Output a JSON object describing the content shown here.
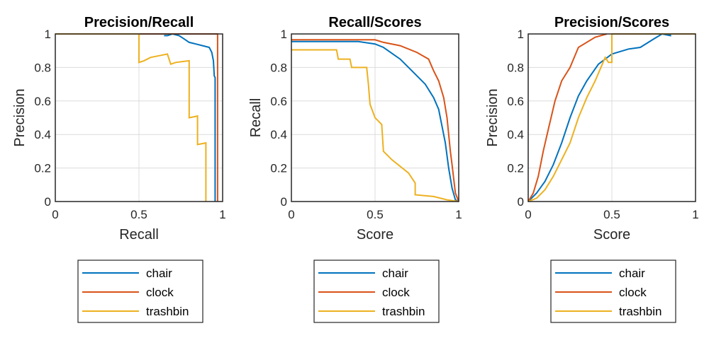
{
  "colors": {
    "chair": "#0072BD",
    "clock": "#D95319",
    "trashbin": "#EDB120"
  },
  "chart_data": [
    {
      "type": "line",
      "title": "Precision/Recall",
      "xlabel": "Recall",
      "ylabel": "Precision",
      "xlim": [
        0,
        1
      ],
      "ylim": [
        0,
        1
      ],
      "xticks": [
        "0",
        "0.5",
        "1"
      ],
      "yticks": [
        "0",
        "0.2",
        "0.4",
        "0.6",
        "0.8",
        "1"
      ],
      "grid": true,
      "legend": "below",
      "series": [
        {
          "name": "chair",
          "points": [
            [
              0.65,
              0.99
            ],
            [
              0.67,
              0.99
            ],
            [
              0.7,
              1
            ],
            [
              0.74,
              0.99
            ],
            [
              0.77,
              0.97
            ],
            [
              0.8,
              0.95
            ],
            [
              0.84,
              0.94
            ],
            [
              0.88,
              0.93
            ],
            [
              0.92,
              0.92
            ],
            [
              0.935,
              0.89
            ],
            [
              0.945,
              0.84
            ],
            [
              0.95,
              0.75
            ],
            [
              0.955,
              0.74
            ],
            [
              0.955,
              0
            ]
          ]
        },
        {
          "name": "clock",
          "points": [
            [
              0,
              1
            ],
            [
              0.97,
              1
            ],
            [
              0.97,
              0
            ]
          ]
        },
        {
          "name": "trashbin",
          "points": [
            [
              0,
              1
            ],
            [
              0.5,
              1
            ],
            [
              0.5,
              0.83
            ],
            [
              0.53,
              0.84
            ],
            [
              0.57,
              0.86
            ],
            [
              0.62,
              0.87
            ],
            [
              0.67,
              0.88
            ],
            [
              0.69,
              0.82
            ],
            [
              0.72,
              0.83
            ],
            [
              0.8,
              0.84
            ],
            [
              0.8,
              0.5
            ],
            [
              0.85,
              0.51
            ],
            [
              0.85,
              0.34
            ],
            [
              0.9,
              0.35
            ],
            [
              0.9,
              0
            ]
          ]
        }
      ]
    },
    {
      "type": "line",
      "title": "Recall/Scores",
      "xlabel": "Score",
      "ylabel": "Recall",
      "xlim": [
        0,
        1
      ],
      "ylim": [
        0,
        1
      ],
      "xticks": [
        "0",
        "0.5",
        "1"
      ],
      "yticks": [
        "0",
        "0.2",
        "0.4",
        "0.6",
        "0.8",
        "1"
      ],
      "grid": true,
      "legend": "below",
      "series": [
        {
          "name": "chair",
          "points": [
            [
              0,
              0.955
            ],
            [
              0.4,
              0.955
            ],
            [
              0.5,
              0.94
            ],
            [
              0.55,
              0.92
            ],
            [
              0.65,
              0.85
            ],
            [
              0.72,
              0.78
            ],
            [
              0.8,
              0.7
            ],
            [
              0.85,
              0.62
            ],
            [
              0.88,
              0.55
            ],
            [
              0.9,
              0.45
            ],
            [
              0.92,
              0.35
            ],
            [
              0.94,
              0.2
            ],
            [
              0.96,
              0.08
            ],
            [
              0.98,
              0.01
            ],
            [
              1,
              0
            ]
          ]
        },
        {
          "name": "clock",
          "points": [
            [
              0,
              0.965
            ],
            [
              0.5,
              0.965
            ],
            [
              0.55,
              0.95
            ],
            [
              0.65,
              0.93
            ],
            [
              0.75,
              0.89
            ],
            [
              0.82,
              0.85
            ],
            [
              0.85,
              0.78
            ],
            [
              0.88,
              0.72
            ],
            [
              0.91,
              0.62
            ],
            [
              0.93,
              0.5
            ],
            [
              0.95,
              0.3
            ],
            [
              0.96,
              0.22
            ],
            [
              0.98,
              0.05
            ],
            [
              1,
              0
            ]
          ]
        },
        {
          "name": "trashbin",
          "points": [
            [
              0,
              0.905
            ],
            [
              0.27,
              0.905
            ],
            [
              0.28,
              0.85
            ],
            [
              0.35,
              0.85
            ],
            [
              0.36,
              0.8
            ],
            [
              0.45,
              0.8
            ],
            [
              0.46,
              0.7
            ],
            [
              0.47,
              0.58
            ],
            [
              0.5,
              0.5
            ],
            [
              0.54,
              0.46
            ],
            [
              0.55,
              0.3
            ],
            [
              0.6,
              0.25
            ],
            [
              0.7,
              0.17
            ],
            [
              0.74,
              0.11
            ],
            [
              0.74,
              0.04
            ],
            [
              0.85,
              0.03
            ],
            [
              0.93,
              0.01
            ],
            [
              1,
              0
            ]
          ]
        }
      ]
    },
    {
      "type": "line",
      "title": "Precision/Scores",
      "xlabel": "Score",
      "ylabel": "Precision",
      "xlim": [
        0,
        1
      ],
      "ylim": [
        0,
        1
      ],
      "xticks": [
        "0",
        "0.5",
        "1"
      ],
      "yticks": [
        "0",
        "0.2",
        "0.4",
        "0.6",
        "0.8",
        "1"
      ],
      "grid": true,
      "legend": "below",
      "series": [
        {
          "name": "chair",
          "points": [
            [
              0,
              0
            ],
            [
              0.05,
              0.05
            ],
            [
              0.1,
              0.12
            ],
            [
              0.15,
              0.22
            ],
            [
              0.2,
              0.35
            ],
            [
              0.25,
              0.5
            ],
            [
              0.3,
              0.63
            ],
            [
              0.35,
              0.72
            ],
            [
              0.42,
              0.82
            ],
            [
              0.5,
              0.88
            ],
            [
              0.6,
              0.91
            ],
            [
              0.67,
              0.92
            ],
            [
              0.75,
              0.97
            ],
            [
              0.8,
              1
            ],
            [
              0.85,
              0.99
            ],
            [
              0.85,
              1
            ],
            [
              1,
              1
            ]
          ]
        },
        {
          "name": "clock",
          "points": [
            [
              0,
              0
            ],
            [
              0.03,
              0.05
            ],
            [
              0.06,
              0.15
            ],
            [
              0.09,
              0.3
            ],
            [
              0.12,
              0.43
            ],
            [
              0.16,
              0.6
            ],
            [
              0.2,
              0.72
            ],
            [
              0.25,
              0.8
            ],
            [
              0.3,
              0.92
            ],
            [
              0.4,
              0.98
            ],
            [
              0.47,
              1
            ]
          ]
        },
        {
          "name": "trashbin",
          "points": [
            [
              0,
              0
            ],
            [
              0.05,
              0.02
            ],
            [
              0.1,
              0.07
            ],
            [
              0.15,
              0.15
            ],
            [
              0.2,
              0.25
            ],
            [
              0.25,
              0.35
            ],
            [
              0.3,
              0.5
            ],
            [
              0.35,
              0.62
            ],
            [
              0.4,
              0.72
            ],
            [
              0.46,
              0.86
            ],
            [
              0.48,
              0.83
            ],
            [
              0.5,
              0.83
            ],
            [
              0.5,
              1
            ],
            [
              1,
              1
            ]
          ]
        }
      ]
    }
  ]
}
